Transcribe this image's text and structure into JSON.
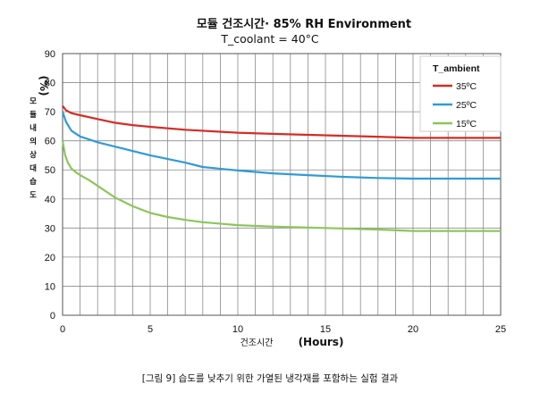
{
  "chart_data": {
    "type": "line",
    "title": "모듈 건조시간· 85% RH Environment",
    "subtitle": "T_coolant = 40°C",
    "xlabel_ko": "건조시간",
    "xlabel_unit": "(Hours)",
    "ylabel_ko": "모듈내의상대습도",
    "ylabel_unit": "(%)",
    "xlim": [
      0,
      25
    ],
    "ylim": [
      0,
      90
    ],
    "x_ticks": [
      "0",
      "5",
      "10",
      "15",
      "20",
      "25"
    ],
    "y_ticks": [
      "0",
      "10",
      "20",
      "30",
      "40",
      "50",
      "60",
      "70",
      "80",
      "90"
    ],
    "grid": true,
    "legend": {
      "title": "T_ambient",
      "placement": "top-right"
    },
    "series": [
      {
        "name": "35ºC",
        "color": "#d42d26",
        "x": [
          0,
          0.2,
          0.5,
          1,
          2,
          3,
          4,
          5,
          7,
          10,
          12,
          15,
          18,
          20,
          22,
          25
        ],
        "y": [
          72,
          70.5,
          69.5,
          68.8,
          67.5,
          66.2,
          65.4,
          64.8,
          63.8,
          62.8,
          62.4,
          61.9,
          61.4,
          61,
          61,
          61
        ]
      },
      {
        "name": "25ºC",
        "color": "#2f9bd8",
        "x": [
          0,
          0.2,
          0.5,
          1,
          2,
          3,
          4,
          5,
          7,
          8,
          10,
          12,
          14,
          16,
          18,
          20,
          22,
          25
        ],
        "y": [
          70,
          66.5,
          63.5,
          61.5,
          59.5,
          58,
          56.5,
          55,
          52.5,
          51,
          49.8,
          48.8,
          48.2,
          47.6,
          47.2,
          47,
          47,
          47
        ]
      },
      {
        "name": "15ºC",
        "color": "#8cc65a",
        "x": [
          0,
          0.15,
          0.3,
          0.5,
          0.8,
          1,
          1.5,
          2,
          3,
          4,
          5,
          6,
          7,
          8,
          10,
          12,
          15,
          18,
          20,
          22,
          25
        ],
        "y": [
          60,
          55,
          52.5,
          50.5,
          49,
          48.2,
          46.5,
          44.5,
          40.5,
          37.5,
          35.2,
          33.8,
          32.8,
          32,
          31,
          30.5,
          30,
          29.5,
          29,
          29,
          29
        ]
      }
    ]
  },
  "caption": "[그림 9] 습도를 낮추기 위한 가열된 냉각재를 포함하는 실험 결과"
}
